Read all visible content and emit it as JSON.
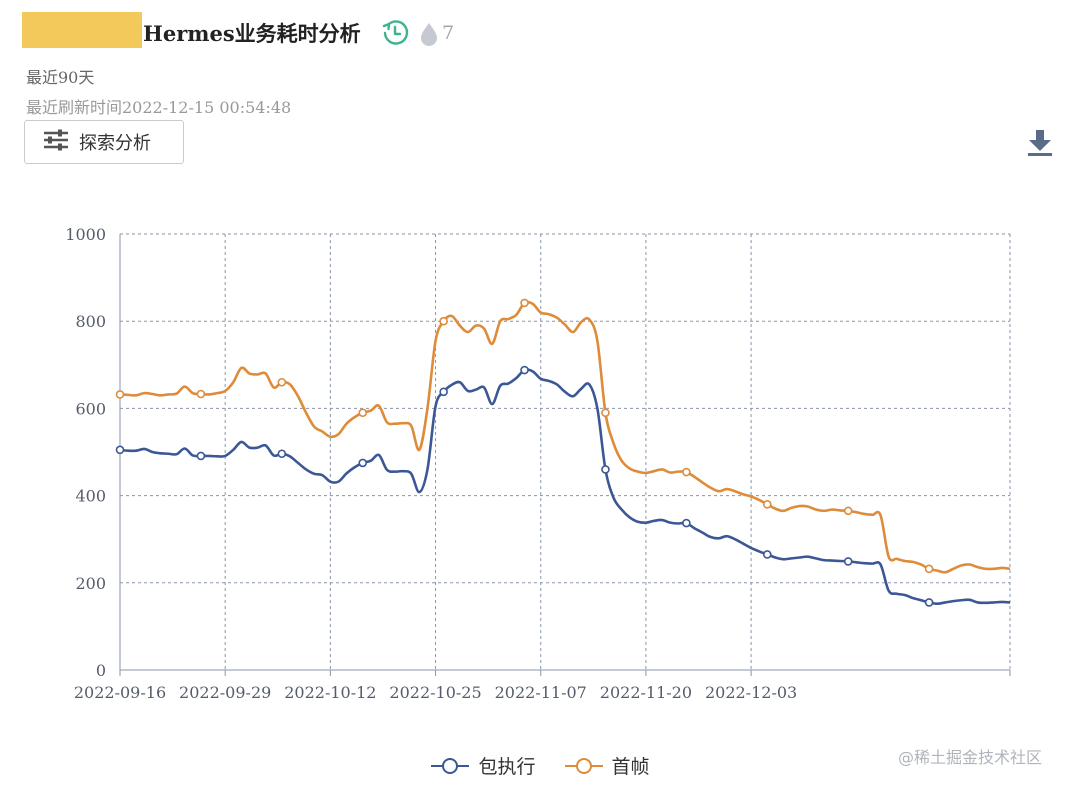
{
  "header": {
    "title": "Hermes业务耗时分析",
    "view_count": "7",
    "range_label": "最近90天",
    "refresh_label": "最近刷新时间2022-12-15 00:54:48",
    "explore_button": "探索分析"
  },
  "footer_watermark": "@稀土掘金技术社区",
  "colors": {
    "series1": "#3b5795",
    "series2": "#de8b3a",
    "grid": "#8a95a8",
    "axis_text": "#555c6b"
  },
  "chart_data": {
    "type": "line",
    "title": "",
    "xlabel": "",
    "ylabel": "",
    "ylim": [
      0,
      1000
    ],
    "yticks": [
      0,
      200,
      400,
      600,
      800,
      1000
    ],
    "x_tick_labels": [
      "2022-09-16",
      "2022-09-29",
      "2022-10-12",
      "2022-10-25",
      "2022-11-07",
      "2022-11-20",
      "2022-12-03"
    ],
    "x_start": "2022-09-16",
    "legend": "bottom-center",
    "grid": true,
    "series": [
      {
        "name": "包执行",
        "values": [
          505,
          503,
          503,
          507,
          500,
          497,
          496,
          495,
          508,
          492,
          491,
          491,
          490,
          491,
          505,
          523,
          510,
          510,
          515,
          492,
          496,
          490,
          475,
          460,
          450,
          447,
          432,
          432,
          451,
          465,
          475,
          480,
          493,
          459,
          455,
          456,
          450,
          408,
          460,
          605,
          638,
          654,
          660,
          640,
          643,
          648,
          610,
          652,
          657,
          670,
          688,
          685,
          668,
          663,
          655,
          638,
          628,
          645,
          655,
          600,
          460,
          395,
          368,
          350,
          340,
          338,
          342,
          344,
          338,
          336,
          337,
          325,
          315,
          305,
          302,
          307,
          300,
          290,
          280,
          272,
          265,
          258,
          254,
          256,
          258,
          260,
          256,
          252,
          251,
          250,
          249,
          247,
          245,
          244,
          242,
          182,
          175,
          172,
          165,
          160,
          155,
          152,
          155,
          158,
          160,
          161,
          155,
          154,
          155,
          156,
          155
        ],
        "marker_indices": [
          0,
          10,
          20,
          30,
          40,
          50,
          60,
          70,
          80,
          90,
          100
        ]
      },
      {
        "name": "首帧",
        "values": [
          632,
          631,
          630,
          635,
          633,
          630,
          632,
          634,
          650,
          635,
          633,
          632,
          635,
          640,
          660,
          693,
          680,
          678,
          680,
          648,
          660,
          655,
          628,
          590,
          558,
          547,
          535,
          541,
          565,
          580,
          590,
          595,
          606,
          568,
          565,
          566,
          560,
          505,
          600,
          755,
          800,
          812,
          790,
          775,
          790,
          783,
          748,
          800,
          805,
          815,
          842,
          840,
          820,
          816,
          808,
          792,
          775,
          798,
          804,
          755,
          590,
          520,
          480,
          462,
          455,
          452,
          456,
          460,
          453,
          455,
          454,
          443,
          430,
          418,
          410,
          415,
          410,
          403,
          398,
          390,
          380,
          370,
          365,
          372,
          376,
          375,
          368,
          365,
          368,
          366,
          365,
          362,
          358,
          356,
          355,
          260,
          255,
          250,
          248,
          242,
          232,
          228,
          224,
          232,
          240,
          242,
          236,
          232,
          232,
          234,
          232
        ],
        "marker_indices": [
          0,
          10,
          20,
          30,
          40,
          50,
          60,
          70,
          80,
          90,
          100
        ]
      }
    ]
  }
}
